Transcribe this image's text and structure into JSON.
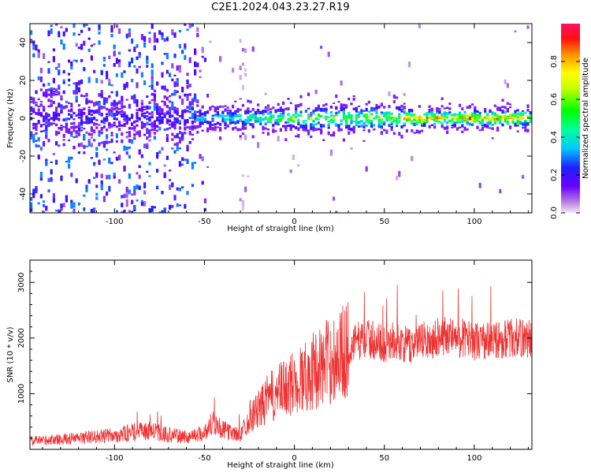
{
  "title": "C2E1.2024.043.23.27.R19",
  "chart_data": [
    {
      "type": "heatmap",
      "title": "",
      "xlabel": "Height of straight line (km)",
      "ylabel": "Frequency (Hz)",
      "xlim": [
        -147,
        132
      ],
      "ylim": [
        -50,
        50
      ],
      "x_ticks": [
        -100,
        -50,
        0,
        50,
        100
      ],
      "y_ticks": [
        -40,
        -20,
        0,
        20,
        40
      ],
      "colorbar": {
        "label": "Normalized spectral amplitude",
        "range": [
          0,
          1
        ],
        "ticks": [
          0.0,
          0.2,
          0.4,
          0.6,
          0.8
        ],
        "colormap": "rainbow"
      },
      "features": [
        {
          "description_value": "broadband scattered noise",
          "x_range": [
            -147,
            -55
          ],
          "y_range": [
            -50,
            50
          ],
          "amplitude": 0.2
        },
        {
          "description_value": "strong band near 0 Hz",
          "x_range": [
            -55,
            132
          ],
          "y_center": 0,
          "amplitude": 0.8
        },
        {
          "description_value": "vertical stripe",
          "x_range": [
            -32,
            -27
          ],
          "y_range": [
            -50,
            50
          ],
          "amplitude": 0.05
        }
      ]
    },
    {
      "type": "line",
      "title": "",
      "xlabel": "Height of straight line (km)",
      "ylabel": "SNR (10 * v/v)",
      "xlim": [
        -147,
        132
      ],
      "ylim": [
        0,
        3400
      ],
      "x_ticks": [
        -100,
        -50,
        0,
        50,
        100
      ],
      "y_ticks": [
        1000,
        2000,
        3000
      ],
      "line_color": "#ee3333",
      "series": [
        {
          "x": [
            -147,
            -130,
            -120,
            -110,
            -100,
            -90,
            -80,
            -70,
            -60,
            -50,
            -45,
            -40,
            -35,
            -30,
            -25,
            -20,
            -15,
            -10,
            -5,
            0,
            5,
            10,
            15,
            20,
            25,
            30,
            35,
            40,
            45,
            50,
            55,
            60,
            65,
            70,
            75,
            80,
            85,
            90,
            95,
            100,
            110,
            120,
            132
          ],
          "values": [
            150,
            180,
            200,
            230,
            250,
            300,
            330,
            260,
            220,
            300,
            500,
            350,
            300,
            250,
            600,
            700,
            900,
            1000,
            1100,
            1200,
            1300,
            1400,
            1500,
            1600,
            1700,
            1800,
            1950,
            2000,
            1950,
            1900,
            1950,
            1900,
            1850,
            1950,
            1950,
            2050,
            2050,
            2000,
            2000,
            1950,
            1950,
            2000,
            2000
          ]
        }
      ]
    }
  ]
}
